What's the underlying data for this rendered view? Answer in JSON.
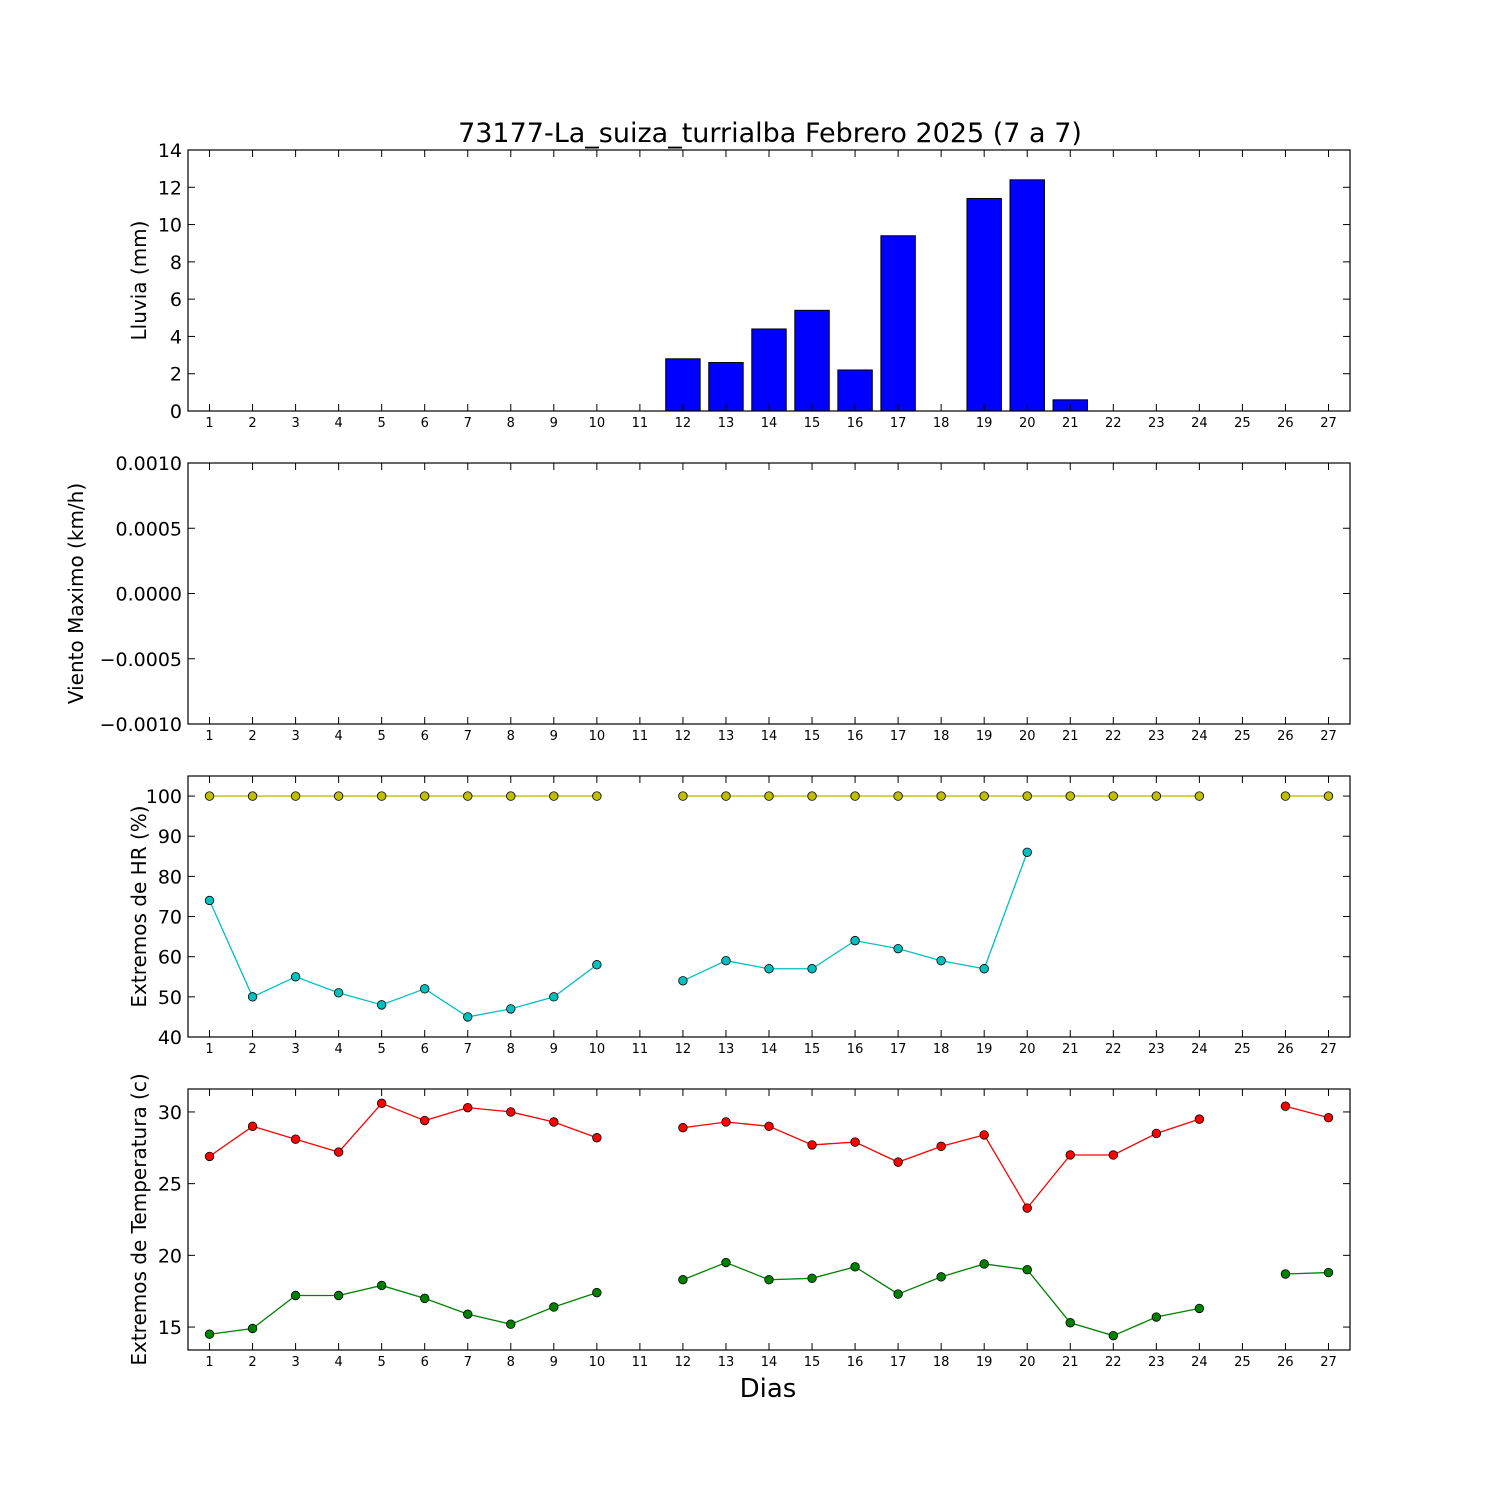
{
  "chart_data": {
    "title": "73177-La_suiza_turrialba Febrero 2025  (7 a 7)",
    "xlabel": "Dias",
    "days": [
      1,
      2,
      3,
      4,
      5,
      6,
      7,
      8,
      9,
      10,
      11,
      12,
      13,
      14,
      15,
      16,
      17,
      18,
      19,
      20,
      21,
      22,
      23,
      24,
      25,
      26,
      27
    ],
    "panels": [
      {
        "id": "lluvia",
        "type": "bar",
        "ylabel": "Lluvia (mm)",
        "ylim": [
          0,
          14
        ],
        "yticks": [
          0,
          2,
          4,
          6,
          8,
          10,
          12,
          14
        ],
        "ytick_labels": [
          "0",
          "2",
          "4",
          "6",
          "8",
          "10",
          "12",
          "14"
        ],
        "grid": false,
        "series": [
          {
            "color": "#0000ff",
            "values": [
              0,
              0,
              0,
              0,
              0,
              0,
              0,
              0,
              0,
              0,
              null,
              2.8,
              2.6,
              4.4,
              5.4,
              2.2,
              9.4,
              null,
              11.4,
              12.4,
              0.6,
              0,
              0,
              0,
              0,
              0,
              0
            ]
          }
        ]
      },
      {
        "id": "viento",
        "type": "line",
        "ylabel": "Viento Maximo (km/h)",
        "ylim": [
          -0.001,
          0.001
        ],
        "yticks": [
          -0.001,
          -0.0005,
          0.0,
          0.0005,
          0.001
        ],
        "ytick_labels": [
          "−0.0010",
          "−0.0005",
          "0.0000",
          "0.0005",
          "0.0010"
        ],
        "grid": false,
        "series": []
      },
      {
        "id": "hr",
        "type": "line",
        "ylabel": "Extremos de HR (%)",
        "ylim": [
          40,
          105
        ],
        "yticks": [
          40,
          50,
          60,
          70,
          80,
          90,
          100
        ],
        "ytick_labels": [
          "40",
          "50",
          "60",
          "70",
          "80",
          "90",
          "100"
        ],
        "grid": false,
        "series": [
          {
            "color": "#bfbf00",
            "values": [
              100,
              100,
              100,
              100,
              100,
              100,
              100,
              100,
              100,
              100,
              null,
              100,
              100,
              100,
              100,
              100,
              100,
              100,
              100,
              100,
              100,
              100,
              100,
              100,
              null,
              100,
              100
            ]
          },
          {
            "color": "#00bfbf",
            "values": [
              74,
              50,
              55,
              51,
              48,
              52,
              45,
              47,
              50,
              58,
              null,
              54,
              59,
              57,
              57,
              64,
              62,
              59,
              57,
              86,
              null,
              null,
              null,
              null,
              null,
              null,
              null
            ]
          }
        ]
      },
      {
        "id": "temp",
        "type": "line",
        "ylabel": "Extremos de Temperatura (c)",
        "ylim": [
          13.4,
          31.6
        ],
        "yticks": [
          15,
          20,
          25,
          30
        ],
        "ytick_labels": [
          "15",
          "20",
          "25",
          "30"
        ],
        "grid": false,
        "series": [
          {
            "color": "#ff0000",
            "values": [
              26.9,
              29.0,
              28.1,
              27.2,
              30.6,
              29.4,
              30.3,
              30.0,
              29.3,
              28.2,
              null,
              28.9,
              29.3,
              29.0,
              27.7,
              27.9,
              26.5,
              27.6,
              28.4,
              23.3,
              27.0,
              27.0,
              28.5,
              29.5,
              null,
              30.4,
              29.6
            ]
          },
          {
            "color": "#008000",
            "values": [
              14.5,
              14.9,
              17.2,
              17.2,
              17.9,
              17.0,
              15.9,
              15.2,
              16.4,
              17.4,
              null,
              18.3,
              19.5,
              18.3,
              18.4,
              19.2,
              17.3,
              18.5,
              19.4,
              19.0,
              15.3,
              14.4,
              15.7,
              16.3,
              null,
              18.7,
              18.8
            ]
          }
        ]
      }
    ]
  }
}
